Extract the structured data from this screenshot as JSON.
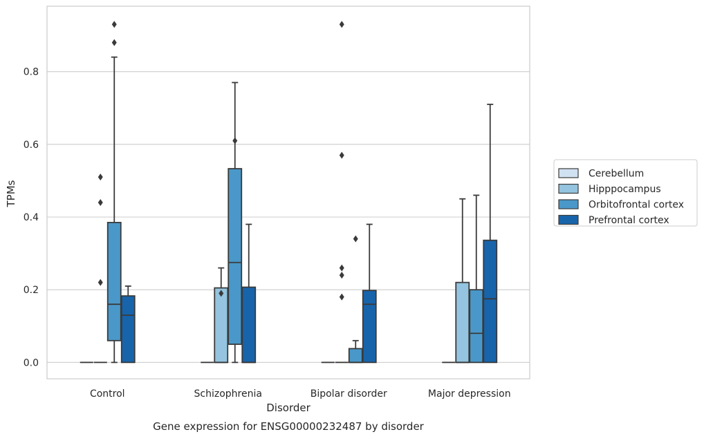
{
  "caption": "Gene expression for ENSG00000232487 by disorder",
  "chart_data": {
    "type": "boxplot",
    "xlabel": "Disorder",
    "ylabel": "TPMs",
    "ylim": [
      -0.045,
      0.98
    ],
    "yticks": [
      0.0,
      0.2,
      0.4,
      0.6,
      0.8
    ],
    "ytick_labels": [
      "0.0",
      "0.2",
      "0.4",
      "0.6",
      "0.8"
    ],
    "grid": "horizontal",
    "legend_position": "right",
    "categories": [
      "Control",
      "Schizophrenia",
      "Bipolar disorder",
      "Major depression"
    ],
    "series": [
      {
        "name": "Cerebellum",
        "color": "#d0e1f2",
        "boxes": [
          {
            "q1": 0.0,
            "median": 0.0,
            "q3": 0.0,
            "whisker_low": 0.0,
            "whisker_high": 0.0,
            "outliers": []
          },
          {
            "q1": 0.0,
            "median": 0.0,
            "q3": 0.0,
            "whisker_low": 0.0,
            "whisker_high": 0.0,
            "outliers": []
          },
          {
            "q1": 0.0,
            "median": 0.0,
            "q3": 0.0,
            "whisker_low": 0.0,
            "whisker_high": 0.0,
            "outliers": []
          },
          {
            "q1": 0.0,
            "median": 0.0,
            "q3": 0.0,
            "whisker_low": 0.0,
            "whisker_high": 0.0,
            "outliers": []
          }
        ]
      },
      {
        "name": "Hipppocampus",
        "color": "#94c4df",
        "boxes": [
          {
            "q1": 0.0,
            "median": 0.0,
            "q3": 0.0,
            "whisker_low": 0.0,
            "whisker_high": 0.0,
            "outliers": [
              0.22,
              0.44,
              0.51
            ]
          },
          {
            "q1": 0.0,
            "median": 0.0,
            "q3": 0.205,
            "whisker_low": 0.0,
            "whisker_high": 0.26,
            "outliers": [
              0.19
            ]
          },
          {
            "q1": 0.0,
            "median": 0.0,
            "q3": 0.0,
            "whisker_low": 0.0,
            "whisker_high": 0.0,
            "outliers": [
              0.18,
              0.24,
              0.26,
              0.57,
              0.93
            ]
          },
          {
            "q1": 0.0,
            "median": 0.0,
            "q3": 0.22,
            "whisker_low": 0.0,
            "whisker_high": 0.45,
            "outliers": []
          }
        ]
      },
      {
        "name": "Orbitofrontal cortex",
        "color": "#4a98c9",
        "boxes": [
          {
            "q1": 0.06,
            "median": 0.16,
            "q3": 0.385,
            "whisker_low": 0.0,
            "whisker_high": 0.84,
            "outliers": [
              0.88,
              0.93
            ]
          },
          {
            "q1": 0.05,
            "median": 0.275,
            "q3": 0.533,
            "whisker_low": 0.0,
            "whisker_high": 0.77,
            "outliers": [
              0.61
            ]
          },
          {
            "q1": 0.0,
            "median": 0.0,
            "q3": 0.038,
            "whisker_low": 0.0,
            "whisker_high": 0.06,
            "outliers": [
              0.34
            ]
          },
          {
            "q1": 0.0,
            "median": 0.08,
            "q3": 0.2,
            "whisker_low": 0.0,
            "whisker_high": 0.46,
            "outliers": []
          }
        ]
      },
      {
        "name": "Prefrontal cortex",
        "color": "#1764ab",
        "boxes": [
          {
            "q1": 0.0,
            "median": 0.13,
            "q3": 0.183,
            "whisker_low": 0.0,
            "whisker_high": 0.21,
            "outliers": []
          },
          {
            "q1": 0.0,
            "median": 0.0,
            "q3": 0.207,
            "whisker_low": 0.0,
            "whisker_high": 0.38,
            "outliers": []
          },
          {
            "q1": 0.0,
            "median": 0.16,
            "q3": 0.198,
            "whisker_low": 0.0,
            "whisker_high": 0.38,
            "outliers": []
          },
          {
            "q1": 0.0,
            "median": 0.175,
            "q3": 0.336,
            "whisker_low": 0.0,
            "whisker_high": 0.71,
            "outliers": []
          }
        ]
      }
    ]
  }
}
